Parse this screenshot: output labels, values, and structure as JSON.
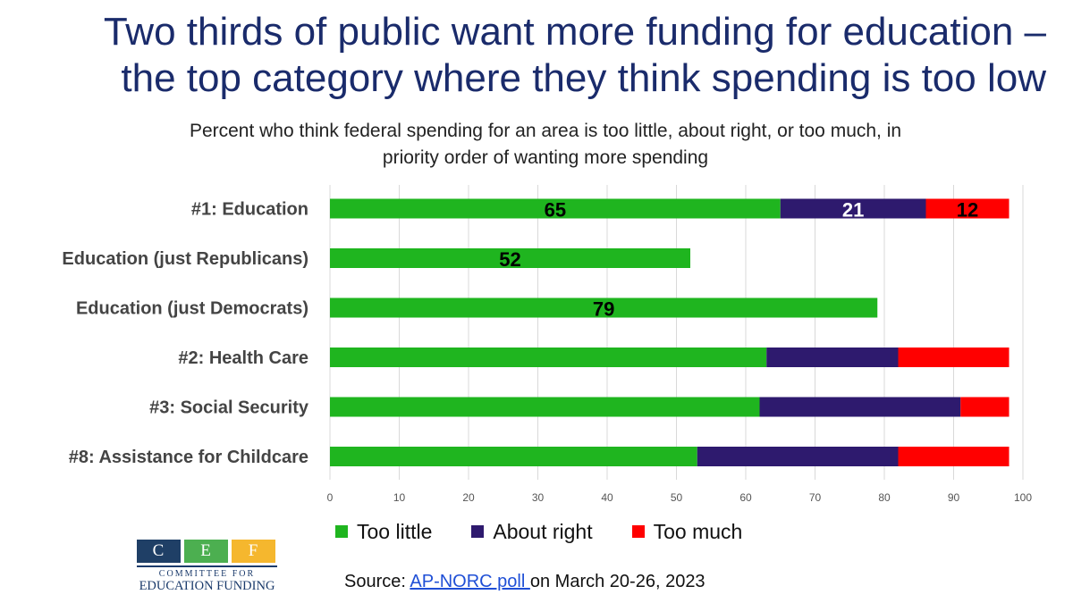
{
  "title": {
    "line1": "Two thirds of public want more funding for education –",
    "line2": "the top category where they think spending is too low"
  },
  "subtitle": {
    "line1": "Percent who think federal spending for an area is too little, about right, or too much, in",
    "line2": "priority order of wanting more spending"
  },
  "colors": {
    "too_little": "#1fb51f",
    "about_right": "#2e1a6e",
    "too_much": "#ff0000"
  },
  "chart_data": {
    "type": "bar",
    "orientation": "horizontal",
    "stacked": true,
    "categories": [
      "#1: Education",
      "Education (just Republicans)",
      "Education (just Democrats)",
      "#2: Health Care",
      "#3: Social Security",
      "#8: Assistance for Childcare"
    ],
    "series": [
      {
        "name": "Too little",
        "key": "too_little",
        "values": [
          65,
          52,
          79,
          63,
          62,
          53
        ]
      },
      {
        "name": "About right",
        "key": "about_right",
        "values": [
          21,
          null,
          null,
          19,
          29,
          29
        ]
      },
      {
        "name": "Too much",
        "key": "too_much",
        "values": [
          12,
          null,
          null,
          16,
          7,
          16
        ]
      }
    ],
    "data_labels": [
      {
        "category_index": 0,
        "series_index": 0,
        "text": "65"
      },
      {
        "category_index": 0,
        "series_index": 1,
        "text": "21"
      },
      {
        "category_index": 0,
        "series_index": 2,
        "text": "12"
      },
      {
        "category_index": 1,
        "series_index": 0,
        "text": "52"
      },
      {
        "category_index": 2,
        "series_index": 0,
        "text": "79"
      }
    ],
    "xlim": [
      0,
      100
    ],
    "xticks": [
      0,
      10,
      20,
      30,
      40,
      50,
      60,
      70,
      80,
      90,
      100
    ],
    "grid": true,
    "legend": "bottom"
  },
  "logo": {
    "letters": [
      "C",
      "E",
      "F"
    ],
    "line1": "COMMITTEE FOR",
    "line2": "EDUCATION FUNDING"
  },
  "source": {
    "prefix": "Source: ",
    "link_text": "AP-NORC poll ",
    "suffix": "on March 20-26, 2023"
  }
}
